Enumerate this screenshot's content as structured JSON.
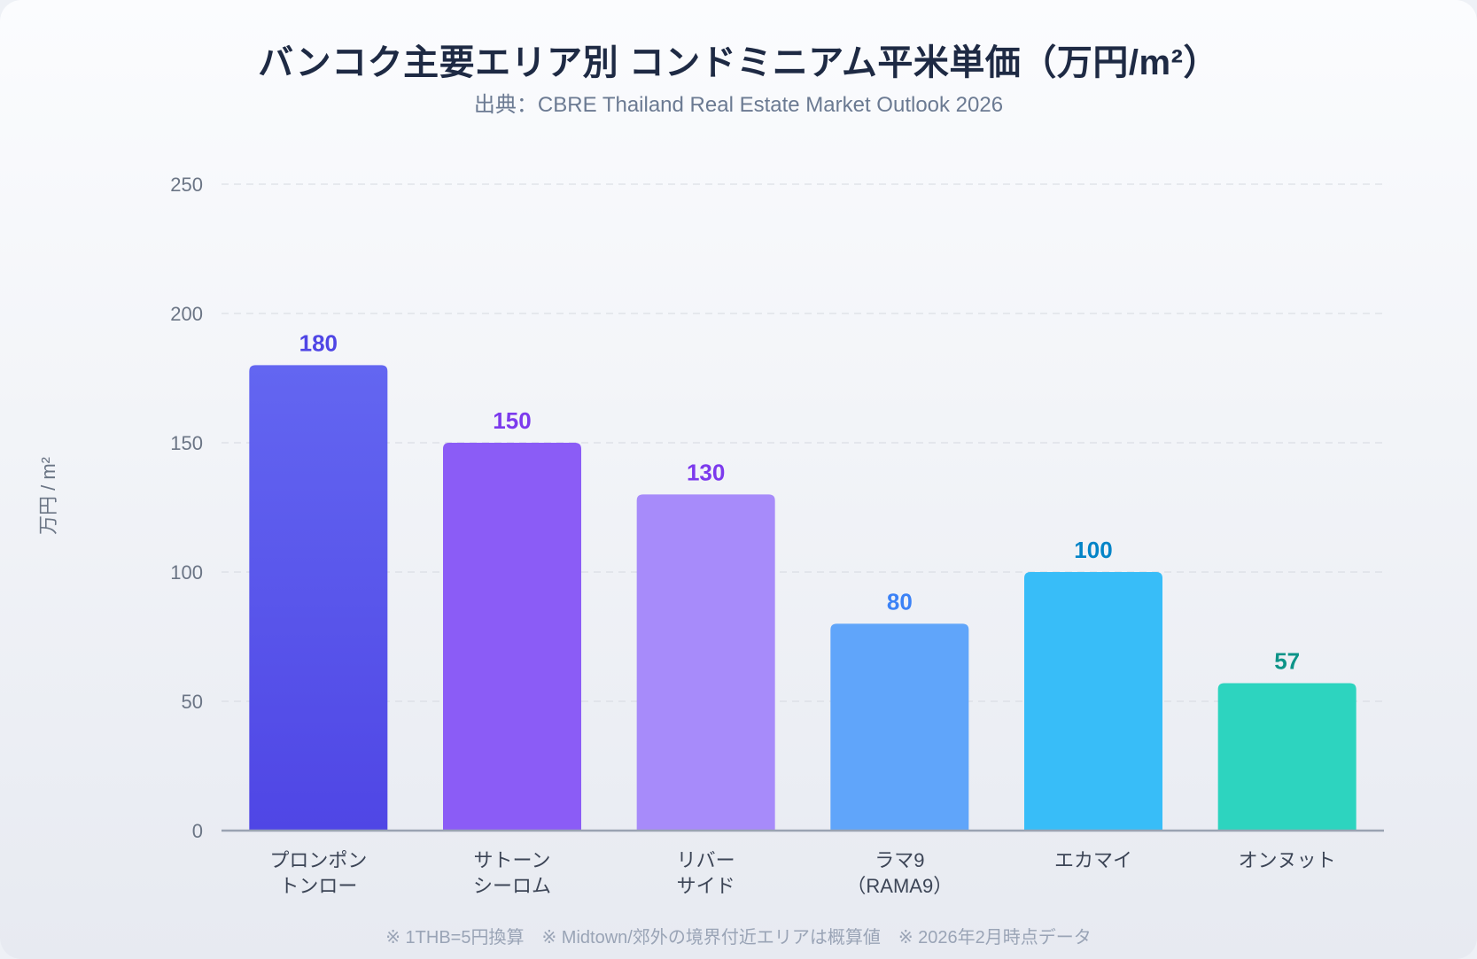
{
  "title": "バンコク主要エリア別 コンドミニアム平米単価（万円/m²）",
  "subtitle": "出典：CBRE Thailand Real Estate Market Outlook 2026",
  "footnote": "※ 1THB=5円換算　※ Midtown/郊外の境界付近エリアは概算値　※ 2026年2月時点データ",
  "colors": {
    "bars": [
      "#5b5ce6",
      "#8b5cf6",
      "#a78bfa",
      "#60a5fa",
      "#38bdf8",
      "#2dd4bf"
    ],
    "value_labels": [
      "#4f46e5",
      "#7c3aed",
      "#7c3aed",
      "#3b82f6",
      "#0284c7",
      "#0d9488"
    ],
    "grid": "#d5d9e0",
    "axis": "#9aa3b2"
  },
  "chart_data": {
    "type": "bar",
    "categories": [
      [
        "プロンポン",
        "トンロー"
      ],
      [
        "サトーン",
        "シーロム"
      ],
      [
        "リバー",
        "サイド"
      ],
      [
        "ラマ9",
        "（RAMA9）"
      ],
      [
        "エカマイ"
      ],
      [
        "オンヌット"
      ]
    ],
    "values": [
      180,
      150,
      130,
      80,
      100,
      57
    ],
    "ylabel": "万円 / m²",
    "ylim": [
      0,
      250
    ],
    "yticks": [
      0,
      50,
      100,
      150,
      200,
      250
    ],
    "grid": true
  }
}
